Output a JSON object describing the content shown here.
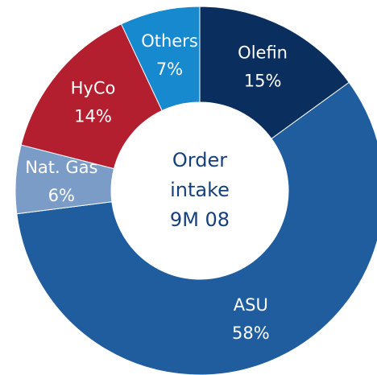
{
  "chart_data": {
    "type": "donut",
    "categories": [
      "Olefin",
      "ASU",
      "Nat. Gas",
      "HyCo",
      "Others"
    ],
    "values": [
      15,
      58,
      6,
      14,
      7
    ],
    "value_labels": [
      "15%",
      "58%",
      "6%",
      "14%",
      "7%"
    ],
    "colors": [
      "#0a2f5f",
      "#1f5d9e",
      "#7b9cc6",
      "#b41f30",
      "#1789cf"
    ],
    "center_text": [
      "Order",
      "intake",
      "9M 08"
    ]
  }
}
